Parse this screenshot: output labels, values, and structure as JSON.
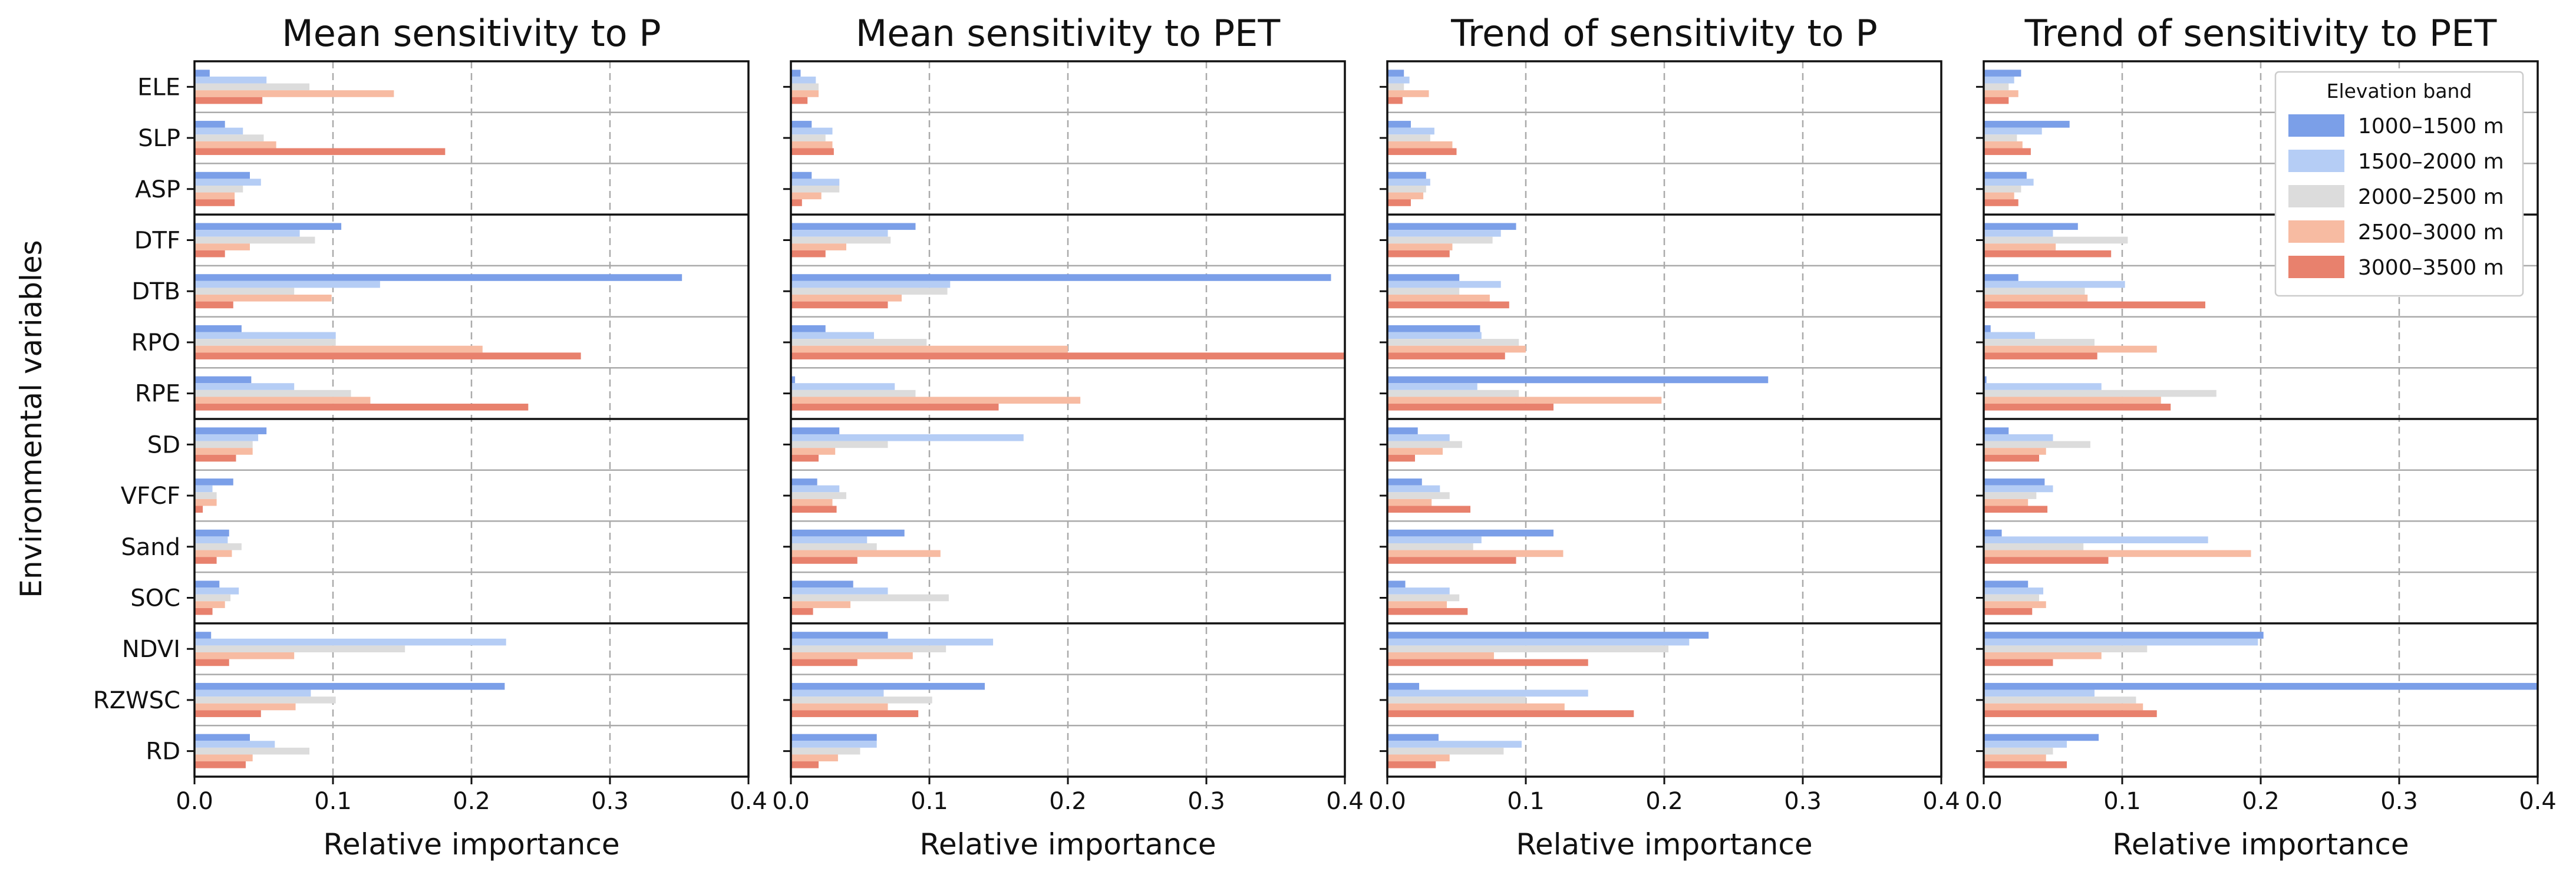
{
  "chart_data": {
    "type": "bar",
    "orientation": "horizontal",
    "ylabel": "Environmental variables",
    "xlabel": "Relative importance",
    "xlim": [
      0,
      0.4
    ],
    "xticks": [
      0.0,
      0.1,
      0.2,
      0.3,
      0.4
    ],
    "xtick_labels": [
      "0.0",
      "0.1",
      "0.2",
      "0.3",
      "0.4"
    ],
    "xgrid": true,
    "variables": [
      "ELE",
      "SLP",
      "ASP",
      "DTF",
      "DTB",
      "RPO",
      "RPE",
      "SD",
      "VFCF",
      "Sand",
      "SOC",
      "NDVI",
      "RZWSC",
      "RD"
    ],
    "group_separators_after": [
      "ASP",
      "RPE",
      "SOC"
    ],
    "legend": {
      "title": "Elevation band",
      "placement": "upper right of last panel",
      "entries": [
        "1000–1500 m",
        "1500–2000 m",
        "2000–2500 m",
        "2500–3000 m",
        "3000–3500 m"
      ]
    },
    "colors": [
      "#7b9fe8",
      "#b5cdf5",
      "#dcdcdc",
      "#f7bba2",
      "#e8816d"
    ],
    "panels": [
      {
        "title": "Mean sensitivity to P",
        "series": [
          {
            "name": "1000–1500 m",
            "values": [
              0.011,
              0.022,
              0.04,
              0.106,
              0.352,
              0.034,
              0.041,
              0.052,
              0.028,
              0.025,
              0.018,
              0.012,
              0.224,
              0.04
            ]
          },
          {
            "name": "1500–2000 m",
            "values": [
              0.052,
              0.035,
              0.048,
              0.076,
              0.134,
              0.102,
              0.072,
              0.046,
              0.013,
              0.024,
              0.032,
              0.225,
              0.084,
              0.058
            ]
          },
          {
            "name": "2000–2500 m",
            "values": [
              0.083,
              0.05,
              0.035,
              0.087,
              0.072,
              0.102,
              0.113,
              0.042,
              0.016,
              0.034,
              0.026,
              0.152,
              0.102,
              0.083
            ]
          },
          {
            "name": "2500–3000 m",
            "values": [
              0.144,
              0.059,
              0.029,
              0.04,
              0.099,
              0.208,
              0.127,
              0.042,
              0.016,
              0.027,
              0.022,
              0.072,
              0.073,
              0.042
            ]
          },
          {
            "name": "3000–3500 m",
            "values": [
              0.049,
              0.181,
              0.029,
              0.022,
              0.028,
              0.279,
              0.241,
              0.03,
              0.006,
              0.016,
              0.013,
              0.025,
              0.048,
              0.037
            ]
          }
        ]
      },
      {
        "title": "Mean sensitivity to PET",
        "series": [
          {
            "name": "1000–1500 m",
            "values": [
              0.007,
              0.015,
              0.015,
              0.09,
              0.39,
              0.025,
              0.003,
              0.035,
              0.019,
              0.082,
              0.045,
              0.07,
              0.14,
              0.062
            ]
          },
          {
            "name": "1500–2000 m",
            "values": [
              0.018,
              0.03,
              0.035,
              0.07,
              0.115,
              0.06,
              0.075,
              0.168,
              0.035,
              0.055,
              0.07,
              0.146,
              0.067,
              0.062
            ]
          },
          {
            "name": "2000–2500 m",
            "values": [
              0.02,
              0.025,
              0.035,
              0.072,
              0.113,
              0.098,
              0.09,
              0.07,
              0.04,
              0.062,
              0.114,
              0.112,
              0.102,
              0.05
            ]
          },
          {
            "name": "2500–3000 m",
            "values": [
              0.02,
              0.03,
              0.022,
              0.04,
              0.08,
              0.2,
              0.209,
              0.032,
              0.03,
              0.108,
              0.043,
              0.088,
              0.07,
              0.034
            ]
          },
          {
            "name": "3000–3500 m",
            "values": [
              0.012,
              0.031,
              0.008,
              0.025,
              0.07,
              0.4,
              0.15,
              0.02,
              0.033,
              0.048,
              0.016,
              0.048,
              0.092,
              0.02
            ]
          }
        ]
      },
      {
        "title": "Trend of sensitivity to P",
        "series": [
          {
            "name": "1000–1500 m",
            "values": [
              0.012,
              0.017,
              0.028,
              0.093,
              0.052,
              0.067,
              0.275,
              0.022,
              0.025,
              0.12,
              0.013,
              0.232,
              0.023,
              0.037
            ]
          },
          {
            "name": "1500–2000 m",
            "values": [
              0.016,
              0.034,
              0.031,
              0.082,
              0.082,
              0.068,
              0.065,
              0.045,
              0.038,
              0.068,
              0.045,
              0.218,
              0.145,
              0.097
            ]
          },
          {
            "name": "2000–2500 m",
            "values": [
              0.012,
              0.031,
              0.028,
              0.076,
              0.052,
              0.095,
              0.095,
              0.054,
              0.045,
              0.062,
              0.052,
              0.203,
              0.1,
              0.084
            ]
          },
          {
            "name": "2500–3000 m",
            "values": [
              0.03,
              0.047,
              0.026,
              0.047,
              0.074,
              0.1,
              0.198,
              0.04,
              0.032,
              0.127,
              0.043,
              0.077,
              0.128,
              0.045
            ]
          },
          {
            "name": "3000–3500 m",
            "values": [
              0.011,
              0.05,
              0.017,
              0.045,
              0.088,
              0.085,
              0.12,
              0.02,
              0.06,
              0.093,
              0.058,
              0.145,
              0.178,
              0.035
            ]
          }
        ]
      },
      {
        "title": "Trend of sensitivity to PET",
        "series": [
          {
            "name": "1000–1500 m",
            "values": [
              0.027,
              0.062,
              0.031,
              0.068,
              0.025,
              0.005,
              0.002,
              0.018,
              0.044,
              0.013,
              0.032,
              0.202,
              0.4,
              0.083
            ]
          },
          {
            "name": "1500–2000 m",
            "values": [
              0.022,
              0.042,
              0.036,
              0.05,
              0.102,
              0.037,
              0.085,
              0.05,
              0.05,
              0.162,
              0.043,
              0.198,
              0.08,
              0.06
            ]
          },
          {
            "name": "2000–2500 m",
            "values": [
              0.018,
              0.024,
              0.027,
              0.104,
              0.073,
              0.08,
              0.168,
              0.077,
              0.038,
              0.072,
              0.04,
              0.118,
              0.11,
              0.05
            ]
          },
          {
            "name": "2500–3000 m",
            "values": [
              0.025,
              0.028,
              0.022,
              0.052,
              0.075,
              0.125,
              0.128,
              0.045,
              0.032,
              0.193,
              0.045,
              0.085,
              0.115,
              0.045
            ]
          },
          {
            "name": "3000–3500 m",
            "values": [
              0.018,
              0.034,
              0.025,
              0.092,
              0.16,
              0.082,
              0.135,
              0.04,
              0.046,
              0.09,
              0.035,
              0.05,
              0.125,
              0.06
            ]
          }
        ]
      }
    ]
  }
}
